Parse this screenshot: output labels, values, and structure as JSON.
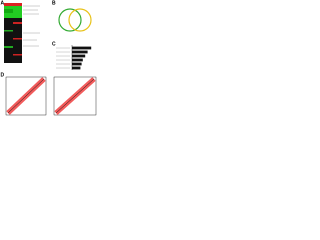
{
  "panels": {
    "a": "A",
    "b": "B",
    "c": "C",
    "d": "D"
  },
  "chart_data": {
    "type": "bar",
    "orientation": "horizontal",
    "values": [
      8,
      6.5,
      5.5,
      4.5,
      4,
      3.5
    ],
    "color": "#111111",
    "xlim": [
      0,
      10
    ]
  }
}
